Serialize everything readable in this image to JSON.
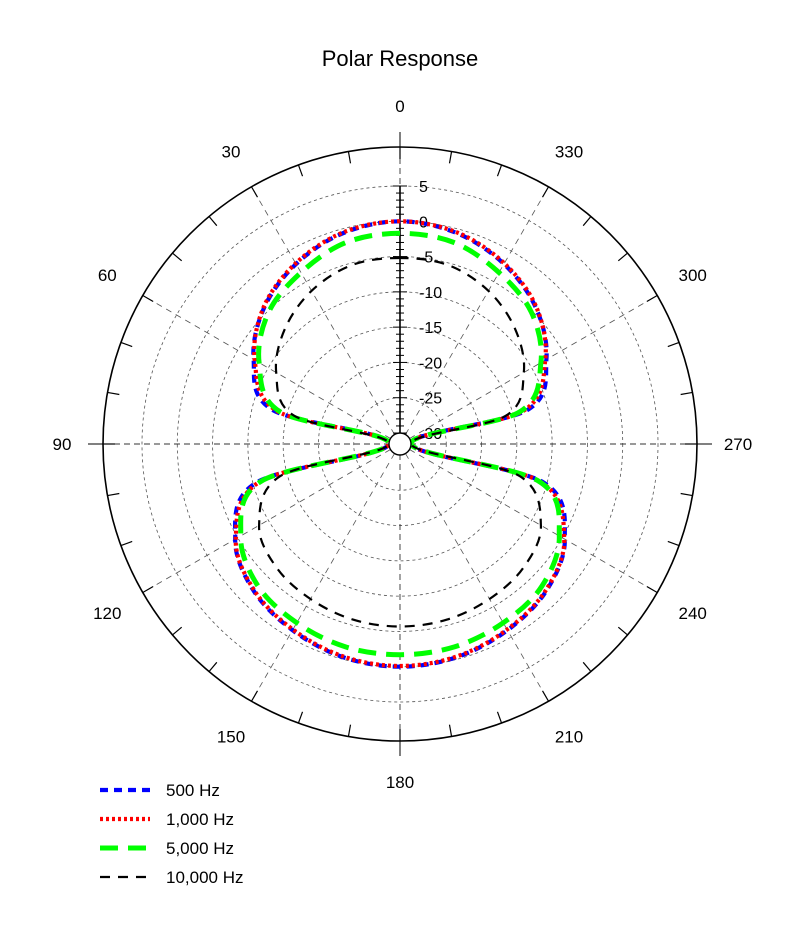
{
  "chart_data": {
    "type": "polar",
    "title": "Polar Response",
    "angle_direction": "counterclockwise",
    "angle_zero": "top",
    "angle_ticks": [
      0,
      30,
      60,
      90,
      120,
      150,
      180,
      210,
      240,
      270,
      300,
      330
    ],
    "angle_tick_labels": [
      "0",
      "30",
      "60",
      "90",
      "120",
      "150",
      "180",
      "210",
      "240",
      "270",
      "300",
      "330"
    ],
    "r_range": [
      -30,
      5
    ],
    "r_ticks": [
      5,
      0,
      -5,
      -10,
      -15,
      -20,
      -25,
      -30
    ],
    "r_tick_labels": [
      "5",
      "0",
      "-5",
      "-10",
      "-15",
      "-20",
      "-25",
      "-30"
    ],
    "grid": true,
    "legend_position": "bottom-left",
    "angles": [
      0,
      15,
      30,
      45,
      60,
      75,
      90,
      105,
      120,
      135,
      150,
      165,
      180
    ],
    "series": [
      {
        "name": "500 Hz",
        "color": "#0000ff",
        "dash": "dashed",
        "values": [
          0,
          -0.6,
          -2.1,
          -4.3,
          -7.6,
          -12.8,
          -31,
          -10.5,
          -4.6,
          -2.2,
          -1.1,
          -0.3,
          0
        ]
      },
      {
        "name": "1,000 Hz",
        "color": "#ff0000",
        "dash": "dotted",
        "values": [
          0,
          -0.5,
          -2.0,
          -4.2,
          -7.8,
          -13.5,
          -31,
          -11.0,
          -4.7,
          -2.3,
          -1.2,
          -0.4,
          -0.1
        ]
      },
      {
        "name": "5,000 Hz",
        "color": "#00ff00",
        "dash": "long-dash",
        "values": [
          -1.7,
          -2.0,
          -3.5,
          -5.2,
          -8.5,
          -14.0,
          -31,
          -11.2,
          -5.5,
          -3.1,
          -2.3,
          -1.8,
          -1.7
        ]
      },
      {
        "name": "10,000 Hz",
        "color": "#000000",
        "dash": "dashed",
        "values": [
          -5.2,
          -5.3,
          -6.5,
          -8.5,
          -11.3,
          -16.0,
          -31,
          -14.0,
          -8.5,
          -6.8,
          -6.2,
          -5.8,
          -5.7
        ]
      }
    ]
  }
}
